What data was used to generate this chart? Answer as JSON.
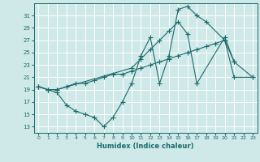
{
  "xlabel": "Humidex (Indice chaleur)",
  "background_color": "#cfe8e8",
  "grid_color": "#dff0f0",
  "line_color": "#1a6b6b",
  "xlim": [
    -0.5,
    23.5
  ],
  "ylim": [
    12,
    33
  ],
  "yticks": [
    13,
    15,
    17,
    19,
    21,
    23,
    25,
    27,
    29,
    31
  ],
  "xticks": [
    0,
    1,
    2,
    3,
    4,
    5,
    6,
    7,
    8,
    9,
    10,
    11,
    12,
    13,
    14,
    15,
    16,
    17,
    18,
    19,
    20,
    21,
    22,
    23
  ],
  "line1_x": [
    0,
    1,
    2,
    3,
    4,
    5,
    6,
    7,
    8,
    9,
    10,
    11,
    12,
    13,
    14,
    15,
    16,
    17,
    18,
    20,
    21
  ],
  "line1_y": [
    19.5,
    19.0,
    18.5,
    16.5,
    15.5,
    15.0,
    14.5,
    13.0,
    14.5,
    17.0,
    20.0,
    24.5,
    27.5,
    20.0,
    24.5,
    32.0,
    32.5,
    31.0,
    30.0,
    27.0,
    23.5
  ],
  "line2_x": [
    0,
    1,
    2,
    3,
    4,
    5,
    6,
    7,
    8,
    9,
    10,
    11,
    12,
    13,
    14,
    15,
    16,
    17,
    18,
    19,
    20,
    21,
    23
  ],
  "line2_y": [
    19.5,
    19.0,
    19.0,
    19.5,
    20.0,
    20.0,
    20.5,
    21.0,
    21.5,
    21.5,
    22.0,
    22.5,
    23.0,
    23.5,
    24.0,
    24.5,
    25.0,
    25.5,
    26.0,
    26.5,
    27.0,
    21.0,
    21.0
  ],
  "line3_x": [
    0,
    1,
    2,
    10,
    11,
    12,
    13,
    14,
    15,
    16,
    17,
    20,
    21,
    23
  ],
  "line3_y": [
    19.5,
    19.0,
    19.0,
    22.5,
    24.0,
    25.5,
    27.0,
    28.5,
    30.0,
    28.0,
    20.0,
    27.5,
    23.5,
    21.0
  ]
}
